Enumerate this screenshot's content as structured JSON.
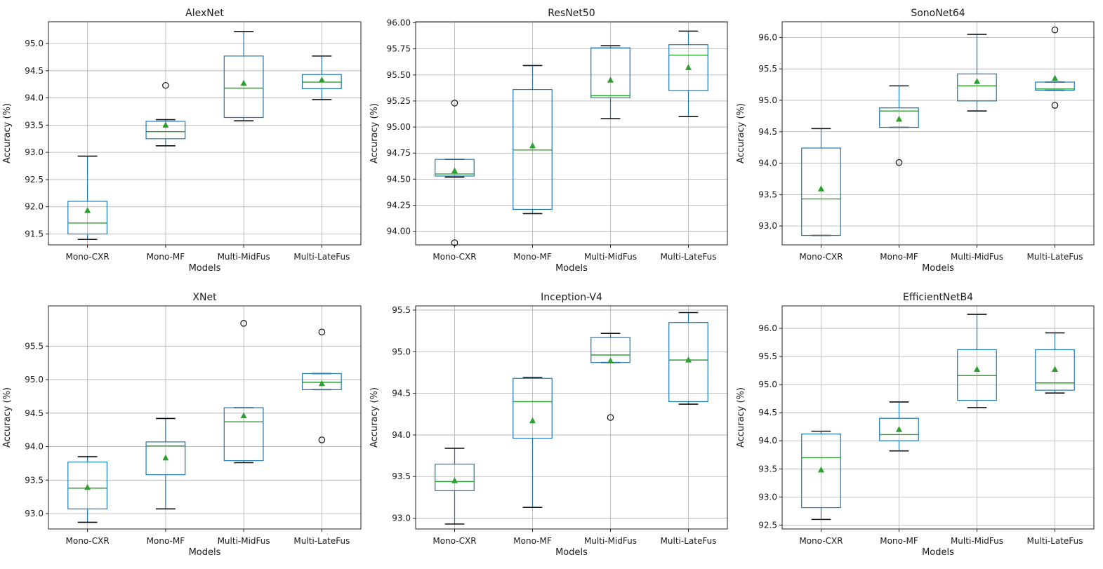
{
  "chart_data": [
    {
      "type": "box",
      "title": "AlexNet",
      "xlabel": "Models",
      "ylabel": "Accuracy (%)",
      "categories": [
        "Mono-CXR",
        "Mono-MF",
        "Multi-MidFus",
        "Multi-LateFus"
      ],
      "ylim": [
        91.3,
        95.4
      ],
      "yticks": [
        91.5,
        92.0,
        92.5,
        93.0,
        93.5,
        94.0,
        94.5,
        95.0
      ],
      "yticklabels": [
        "91.5",
        "92.0",
        "92.5",
        "93.0",
        "93.5",
        "94.0",
        "94.5",
        "95.0"
      ],
      "boxes": [
        {
          "whislo": 91.4,
          "q1": 91.5,
          "med": 91.7,
          "q3": 92.1,
          "whishi": 92.93,
          "mean": 91.93,
          "fliers": []
        },
        {
          "whislo": 93.12,
          "q1": 93.25,
          "med": 93.38,
          "q3": 93.57,
          "whishi": 93.6,
          "mean": 93.5,
          "fliers": [
            94.23
          ]
        },
        {
          "whislo": 93.58,
          "q1": 93.64,
          "med": 94.18,
          "q3": 94.77,
          "whishi": 95.22,
          "mean": 94.27,
          "fliers": []
        },
        {
          "whislo": 93.97,
          "q1": 94.17,
          "med": 94.29,
          "q3": 94.43,
          "whishi": 94.77,
          "mean": 94.33,
          "fliers": []
        }
      ]
    },
    {
      "type": "box",
      "title": "ResNet50",
      "xlabel": "Models",
      "ylabel": "Accuracy (%)",
      "categories": [
        "Mono-CXR",
        "Mono-MF",
        "Multi-MidFus",
        "Multi-LateFus"
      ],
      "ylim": [
        93.87,
        96.01
      ],
      "yticks": [
        94.0,
        94.25,
        94.5,
        94.75,
        95.0,
        95.25,
        95.5,
        95.75,
        96.0
      ],
      "yticklabels": [
        "94.00",
        "94.25",
        "94.50",
        "94.75",
        "95.00",
        "95.25",
        "95.50",
        "95.75",
        "96.00"
      ],
      "boxes": [
        {
          "whislo": 94.52,
          "q1": 94.53,
          "med": 94.55,
          "q3": 94.69,
          "whishi": 94.69,
          "mean": 94.58,
          "fliers": [
            95.23,
            93.89
          ]
        },
        {
          "whislo": 94.17,
          "q1": 94.21,
          "med": 94.78,
          "q3": 95.36,
          "whishi": 95.59,
          "mean": 94.82,
          "fliers": []
        },
        {
          "whislo": 95.08,
          "q1": 95.28,
          "med": 95.3,
          "q3": 95.76,
          "whishi": 95.78,
          "mean": 95.45,
          "fliers": []
        },
        {
          "whislo": 95.1,
          "q1": 95.35,
          "med": 95.69,
          "q3": 95.79,
          "whishi": 95.92,
          "mean": 95.57,
          "fliers": []
        }
      ]
    },
    {
      "type": "box",
      "title": "SonoNet64",
      "xlabel": "Models",
      "ylabel": "Accuracy (%)",
      "categories": [
        "Mono-CXR",
        "Mono-MF",
        "Multi-MidFus",
        "Multi-LateFus"
      ],
      "ylim": [
        92.7,
        96.25
      ],
      "yticks": [
        93.0,
        93.5,
        94.0,
        94.5,
        95.0,
        95.5,
        96.0
      ],
      "yticklabels": [
        "93.0",
        "93.5",
        "94.0",
        "94.5",
        "95.0",
        "95.5",
        "96.0"
      ],
      "boxes": [
        {
          "whislo": 92.85,
          "q1": 92.85,
          "med": 93.43,
          "q3": 94.24,
          "whishi": 94.55,
          "mean": 93.59,
          "fliers": []
        },
        {
          "whislo": 94.57,
          "q1": 94.57,
          "med": 94.83,
          "q3": 94.88,
          "whishi": 95.23,
          "mean": 94.7,
          "fliers": [
            94.01
          ]
        },
        {
          "whislo": 94.83,
          "q1": 94.99,
          "med": 95.23,
          "q3": 95.42,
          "whishi": 96.05,
          "mean": 95.3,
          "fliers": []
        },
        {
          "whislo": 95.16,
          "q1": 95.16,
          "med": 95.18,
          "q3": 95.29,
          "whishi": 95.29,
          "mean": 95.35,
          "fliers": [
            96.12,
            94.92
          ]
        }
      ]
    },
    {
      "type": "box",
      "title": "XNet",
      "xlabel": "Models",
      "ylabel": "Accuracy (%)",
      "categories": [
        "Mono-CXR",
        "Mono-MF",
        "Multi-MidFus",
        "Multi-LateFus"
      ],
      "ylim": [
        92.77,
        96.1
      ],
      "yticks": [
        93.0,
        93.5,
        94.0,
        94.5,
        95.0,
        95.5
      ],
      "yticklabels": [
        "93.0",
        "93.5",
        "94.0",
        "94.5",
        "95.0",
        "95.5"
      ],
      "boxes": [
        {
          "whislo": 92.87,
          "q1": 93.07,
          "med": 93.38,
          "q3": 93.77,
          "whishi": 93.85,
          "mean": 93.39,
          "fliers": []
        },
        {
          "whislo": 93.07,
          "q1": 93.58,
          "med": 94.01,
          "q3": 94.07,
          "whishi": 94.42,
          "mean": 93.83,
          "fliers": []
        },
        {
          "whislo": 93.76,
          "q1": 93.79,
          "med": 94.37,
          "q3": 94.58,
          "whishi": 94.58,
          "mean": 94.46,
          "fliers": [
            95.84
          ]
        },
        {
          "whislo": 94.85,
          "q1": 94.85,
          "med": 94.96,
          "q3": 95.09,
          "whishi": 95.09,
          "mean": 94.94,
          "fliers": [
            95.71,
            94.1
          ]
        }
      ]
    },
    {
      "type": "box",
      "title": "Inception-V4",
      "xlabel": "Models",
      "ylabel": "Accuracy (%)",
      "categories": [
        "Mono-CXR",
        "Mono-MF",
        "Multi-MidFus",
        "Multi-LateFus"
      ],
      "ylim": [
        92.87,
        95.55
      ],
      "yticks": [
        93.0,
        93.5,
        94.0,
        94.5,
        95.0,
        95.5
      ],
      "yticklabels": [
        "93.0",
        "93.5",
        "94.0",
        "94.5",
        "95.0",
        "95.5"
      ],
      "boxes": [
        {
          "whislo": 92.93,
          "q1": 93.33,
          "med": 93.44,
          "q3": 93.65,
          "whishi": 93.84,
          "mean": 93.45,
          "fliers": []
        },
        {
          "whislo": 93.13,
          "q1": 93.96,
          "med": 94.4,
          "q3": 94.68,
          "whishi": 94.69,
          "mean": 94.17,
          "fliers": []
        },
        {
          "whislo": 94.87,
          "q1": 94.87,
          "med": 94.96,
          "q3": 95.17,
          "whishi": 95.22,
          "mean": 94.89,
          "fliers": [
            94.21
          ]
        },
        {
          "whislo": 94.37,
          "q1": 94.4,
          "med": 94.9,
          "q3": 95.35,
          "whishi": 95.47,
          "mean": 94.9,
          "fliers": []
        }
      ]
    },
    {
      "type": "box",
      "title": "EfficientNetB4",
      "xlabel": "Models",
      "ylabel": "Accuracy (%)",
      "categories": [
        "Mono-CXR",
        "Mono-MF",
        "Multi-MidFus",
        "Multi-LateFus"
      ],
      "ylim": [
        92.43,
        96.4
      ],
      "yticks": [
        92.5,
        93.0,
        93.5,
        94.0,
        94.5,
        95.0,
        95.5,
        96.0
      ],
      "yticklabels": [
        "92.5",
        "93.0",
        "93.5",
        "94.0",
        "94.5",
        "95.0",
        "95.5",
        "96.0"
      ],
      "boxes": [
        {
          "whislo": 92.6,
          "q1": 92.81,
          "med": 93.7,
          "q3": 94.12,
          "whishi": 94.17,
          "mean": 93.48,
          "fliers": []
        },
        {
          "whislo": 93.82,
          "q1": 94.0,
          "med": 94.11,
          "q3": 94.4,
          "whishi": 94.69,
          "mean": 94.2,
          "fliers": []
        },
        {
          "whislo": 94.59,
          "q1": 94.72,
          "med": 95.16,
          "q3": 95.62,
          "whishi": 96.25,
          "mean": 95.27,
          "fliers": []
        },
        {
          "whislo": 94.85,
          "q1": 94.9,
          "med": 95.03,
          "q3": 95.62,
          "whishi": 95.92,
          "mean": 95.27,
          "fliers": []
        }
      ]
    }
  ]
}
